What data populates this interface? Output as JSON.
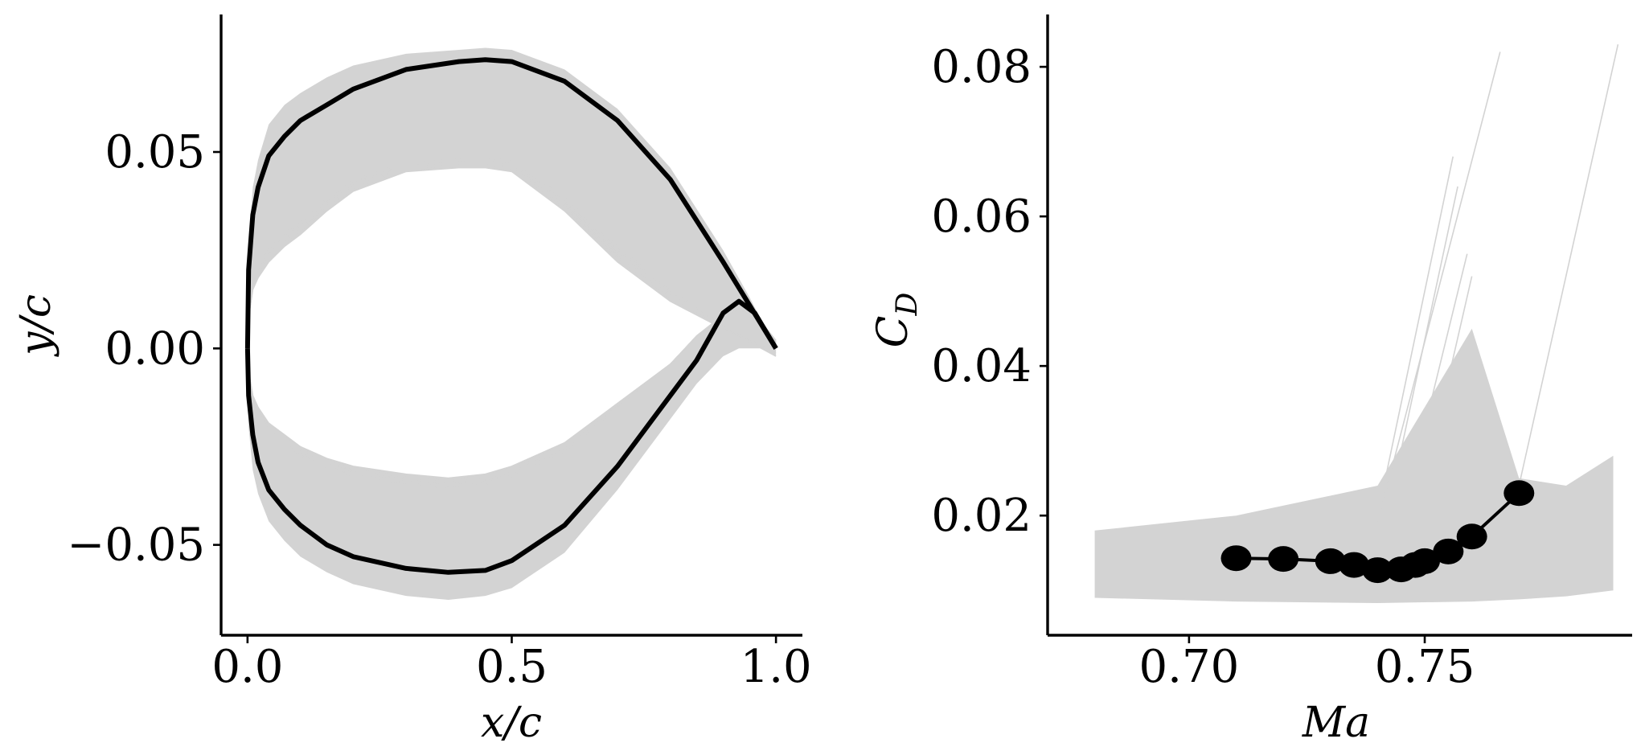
{
  "chart_data": [
    {
      "type": "line",
      "xlabel": "x/c",
      "ylabel": "y/c",
      "xlim": [
        -0.05,
        1.05
      ],
      "ylim": [
        -0.073,
        0.085
      ],
      "xticks": [
        0.0,
        0.5,
        1.0
      ],
      "xtick_labels": [
        "0.0",
        "0.5",
        "1.0"
      ],
      "yticks": [
        -0.05,
        0.0,
        0.05
      ],
      "ytick_labels": [
        "−0.05",
        "0.00",
        "0.05"
      ],
      "grid": false,
      "series": [
        {
          "role": "highlighted-airfoil-upper",
          "color": "#000000",
          "x": [
            0.0,
            0.002,
            0.01,
            0.02,
            0.04,
            0.07,
            0.1,
            0.15,
            0.2,
            0.3,
            0.4,
            0.45,
            0.5,
            0.6,
            0.7,
            0.8,
            0.9,
            0.95,
            1.0
          ],
          "y": [
            0.0,
            0.02,
            0.034,
            0.041,
            0.049,
            0.054,
            0.058,
            0.062,
            0.066,
            0.071,
            0.073,
            0.0735,
            0.073,
            0.068,
            0.058,
            0.043,
            0.022,
            0.011,
            0.0
          ]
        },
        {
          "role": "highlighted-airfoil-lower",
          "color": "#000000",
          "x": [
            0.0,
            0.002,
            0.01,
            0.02,
            0.04,
            0.07,
            0.1,
            0.15,
            0.2,
            0.3,
            0.38,
            0.45,
            0.5,
            0.6,
            0.7,
            0.8,
            0.85,
            0.9,
            0.93,
            0.96,
            1.0
          ],
          "y": [
            0.0,
            -0.012,
            -0.022,
            -0.029,
            -0.036,
            -0.041,
            -0.045,
            -0.05,
            -0.053,
            -0.056,
            -0.057,
            -0.0565,
            -0.054,
            -0.045,
            -0.03,
            -0.012,
            -0.003,
            0.009,
            0.012,
            0.009,
            0.0
          ]
        }
      ],
      "envelope": {
        "role": "family-of-airfoils",
        "color": "#d3d3d3",
        "upper_outer_y": [
          0.0,
          0.026,
          0.041,
          0.048,
          0.057,
          0.062,
          0.065,
          0.069,
          0.072,
          0.075,
          0.076,
          0.0765,
          0.076,
          0.071,
          0.061,
          0.046,
          0.025,
          0.013,
          0.0
        ],
        "upper_inner_y": [
          0.0,
          0.008,
          0.015,
          0.018,
          0.022,
          0.026,
          0.029,
          0.035,
          0.04,
          0.045,
          0.046,
          0.046,
          0.045,
          0.035,
          0.022,
          0.012,
          0.005,
          0.002,
          0.0
        ],
        "lower_outer_y": [
          0.0,
          -0.02,
          -0.031,
          -0.037,
          -0.044,
          -0.049,
          -0.053,
          -0.057,
          -0.06,
          -0.063,
          -0.064,
          -0.063,
          -0.061,
          -0.052,
          -0.036,
          -0.018,
          -0.009,
          -0.002,
          0.0,
          0.0,
          0.0
        ],
        "lower_inner_y": [
          0.0,
          -0.006,
          -0.012,
          -0.015,
          -0.019,
          -0.022,
          -0.025,
          -0.028,
          -0.03,
          -0.032,
          -0.033,
          -0.032,
          -0.03,
          -0.024,
          -0.014,
          -0.004,
          0.003,
          0.008,
          0.01,
          0.008,
          0.0
        ]
      }
    },
    {
      "type": "line",
      "xlabel": "Ma",
      "ylabel": "C_D",
      "ylabel_main": "C",
      "ylabel_sub": "D",
      "xlim": [
        0.67,
        0.794
      ],
      "ylim": [
        0.004,
        0.087
      ],
      "xticks": [
        0.7,
        0.75
      ],
      "xtick_labels": [
        "0.70",
        "0.75"
      ],
      "yticks": [
        0.02,
        0.04,
        0.06,
        0.08
      ],
      "ytick_labels": [
        "0.02",
        "0.04",
        "0.06",
        "0.08"
      ],
      "grid": false,
      "series": [
        {
          "role": "highlighted-drag-curve",
          "color": "#000000",
          "marker": "circle",
          "x": [
            0.71,
            0.72,
            0.73,
            0.735,
            0.74,
            0.745,
            0.748,
            0.75,
            0.755,
            0.76,
            0.77
          ],
          "y": [
            0.0143,
            0.0142,
            0.0139,
            0.0134,
            0.0127,
            0.0128,
            0.0134,
            0.0139,
            0.0152,
            0.0172,
            0.023
          ]
        }
      ],
      "background_band": {
        "role": "family-of-drag-curves",
        "color": "#d3d3d3",
        "x": [
          0.68,
          0.71,
          0.74,
          0.76,
          0.77,
          0.78,
          0.79
        ],
        "low": [
          0.009,
          0.0085,
          0.0083,
          0.0085,
          0.0088,
          0.0092,
          0.01
        ],
        "high": [
          0.018,
          0.02,
          0.024,
          0.045,
          0.025,
          0.024,
          0.028
        ]
      },
      "rising_lines": [
        {
          "x": [
            0.74,
            0.766
          ],
          "y": [
            0.019,
            0.082
          ]
        },
        {
          "x": [
            0.77,
            0.791
          ],
          "y": [
            0.024,
            0.083
          ]
        },
        {
          "x": [
            0.74,
            0.756
          ],
          "y": [
            0.02,
            0.068
          ]
        },
        {
          "x": [
            0.742,
            0.757
          ],
          "y": [
            0.02,
            0.064
          ]
        },
        {
          "x": [
            0.745,
            0.759
          ],
          "y": [
            0.019,
            0.055
          ]
        },
        {
          "x": [
            0.748,
            0.76
          ],
          "y": [
            0.019,
            0.052
          ]
        }
      ]
    }
  ]
}
